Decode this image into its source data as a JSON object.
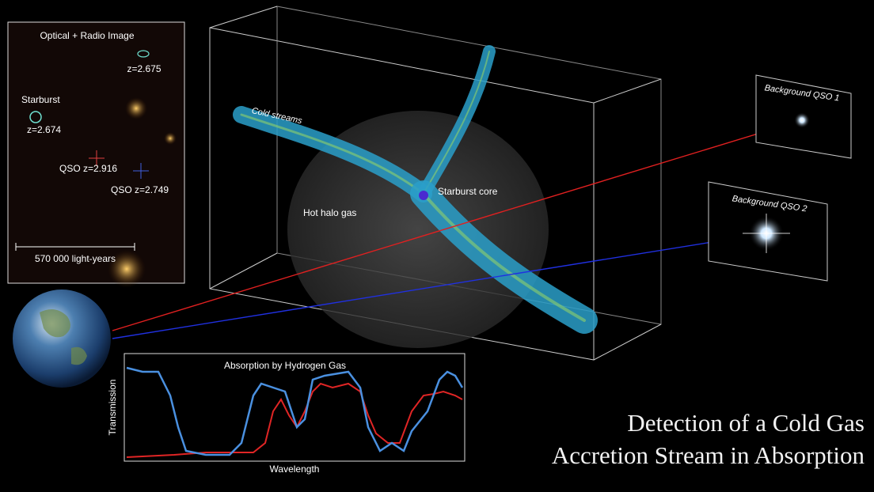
{
  "inset": {
    "title": "Optical + Radio Image",
    "labels": [
      "z=2.675",
      "Starburst",
      "z=2.674",
      "QSO z=2.916",
      "QSO z=2.749"
    ],
    "scale": "570 000 light-years"
  },
  "box": {
    "labels": [
      "Cold streams",
      "Starburst core",
      "Hot halo gas"
    ]
  },
  "qso": [
    "Background QSO 1",
    "Background QSO 2"
  ],
  "spectrum": {
    "title": "Absorption by Hydrogen Gas",
    "y_label": "Transmission",
    "x_label": "Wavelength"
  },
  "caption": [
    "Detection of a Cold Gas",
    "Accretion Stream in Absorption"
  ]
}
